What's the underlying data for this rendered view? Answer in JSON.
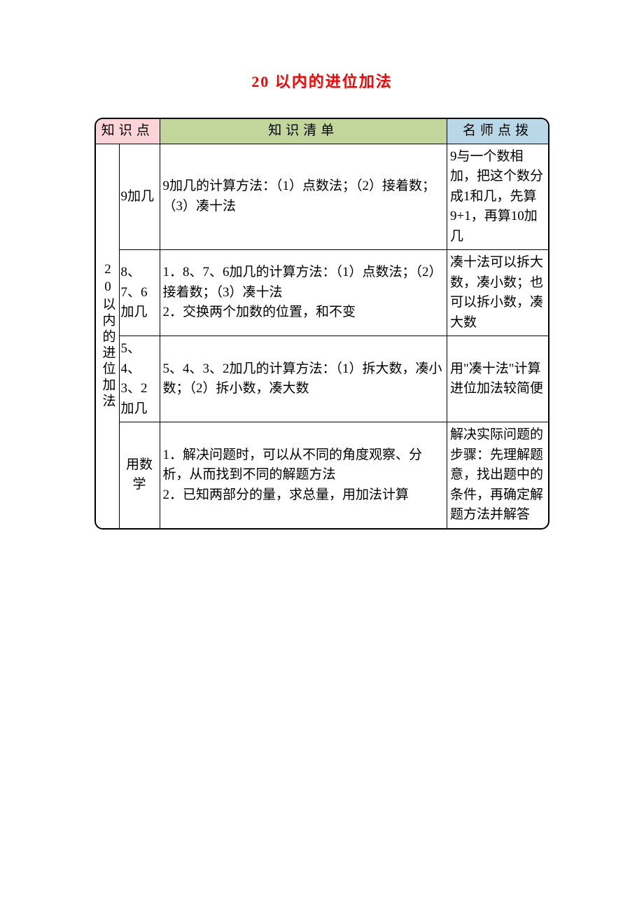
{
  "title": "20 以内的进位加法",
  "headers": {
    "col1": "知识点",
    "col2": "知识清单",
    "col3": "名师点拨"
  },
  "rowHeader": "20以内的进位加法",
  "rows": [
    {
      "subtitle": "9加几",
      "content": "9加几的计算方法：（1）点数法；（2）接着数；（3）凑十法",
      "tips": "9与一个数相加，把这个数分成1和几，先算9+1，再算10加几"
    },
    {
      "subtitle": "8、7、6加几",
      "content": "1．8、7、6加几的计算方法：（1）点数法；（2）接着数；（3）凑十法\n2．交换两个加数的位置，和不变",
      "tips": "凑十法可以拆大数，凑小数；也可以拆小数，凑大数"
    },
    {
      "subtitle": "5、4、3、2加几",
      "content": "5、4、3、2加几的计算方法：（1）拆大数，凑小数；（2）拆小数，凑大数",
      "tips": "用\"凑十法\"计算进位加法较简便"
    },
    {
      "subtitle": "用数学",
      "content": "1．解决问题时，可以从不同的角度观察、分析，从而找到不同的解题方法\n2．已知两部分的量，求总量，用加法计算",
      "tips": "解决实际问题的步骤：先理解题意，找出题中的条件，再确定解题方法并解答"
    }
  ],
  "colors": {
    "title": "#ff0000",
    "headerPink": "#fbd4d8",
    "headerGreen": "#c2d69b",
    "headerBlue": "#b8d8e8",
    "border": "#000000",
    "text": "#000000",
    "background": "#ffffff"
  }
}
